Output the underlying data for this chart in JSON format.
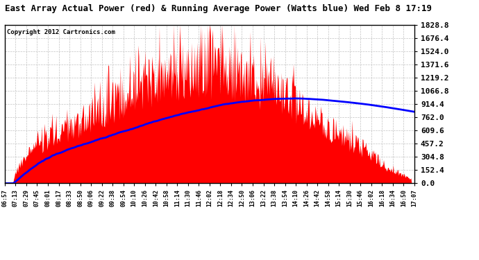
{
  "title": "East Array Actual Power (red) & Running Average Power (Watts blue) Wed Feb 8 17:19",
  "copyright": "Copyright 2012 Cartronics.com",
  "background_color": "#ffffff",
  "plot_bg_color": "#ffffff",
  "yticks": [
    0.0,
    152.4,
    304.8,
    457.2,
    609.6,
    762.0,
    914.4,
    1066.8,
    1219.2,
    1371.6,
    1524.0,
    1676.4,
    1828.8
  ],
  "ymax": 1828.8,
  "ymin": 0.0,
  "bar_color": "#ff0000",
  "line_color": "#0000ff",
  "grid_color": "#bbbbbb",
  "xtick_labels": [
    "06:57",
    "07:13",
    "07:29",
    "07:45",
    "08:01",
    "08:17",
    "08:33",
    "08:50",
    "09:06",
    "09:22",
    "09:38",
    "09:54",
    "10:10",
    "10:26",
    "10:42",
    "10:58",
    "11:14",
    "11:30",
    "11:46",
    "12:02",
    "12:18",
    "12:34",
    "12:50",
    "13:06",
    "13:22",
    "13:38",
    "13:54",
    "14:10",
    "14:26",
    "14:42",
    "14:58",
    "15:14",
    "15:30",
    "15:46",
    "16:02",
    "16:18",
    "16:34",
    "16:50",
    "17:07"
  ]
}
